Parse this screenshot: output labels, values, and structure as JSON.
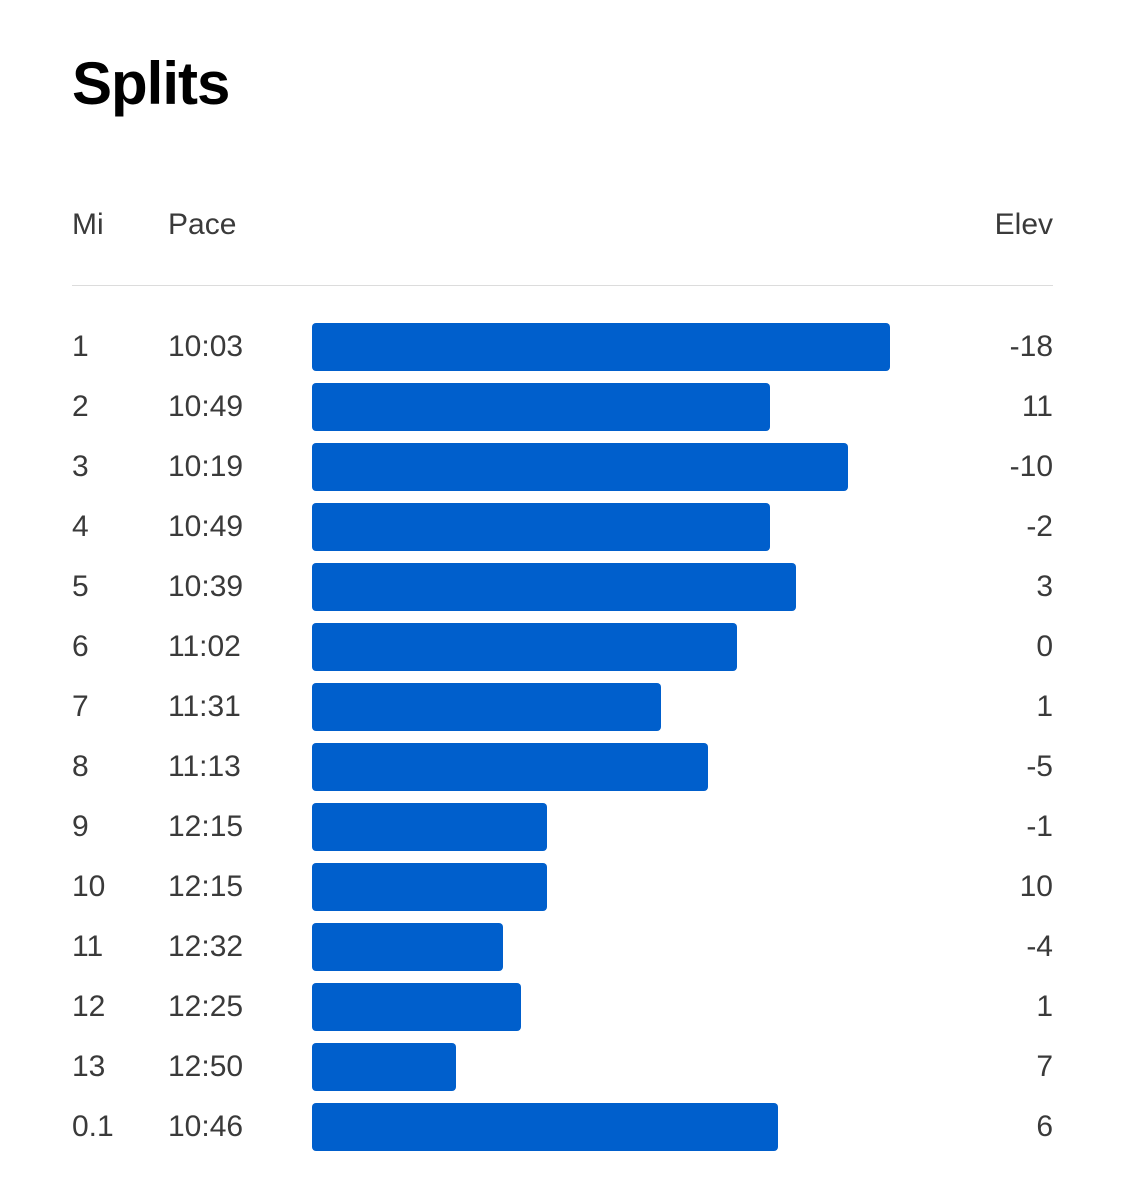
{
  "title": "Splits",
  "columns": {
    "mi": "Mi",
    "pace": "Pace",
    "elev": "Elev"
  },
  "accent_color": "#005fcc",
  "chart_data": {
    "type": "bar",
    "orientation": "horizontal",
    "categories": [
      "1",
      "2",
      "3",
      "4",
      "5",
      "6",
      "7",
      "8",
      "9",
      "10",
      "11",
      "12",
      "13",
      "0.1"
    ],
    "pace": [
      "10:03",
      "10:49",
      "10:19",
      "10:49",
      "10:39",
      "11:02",
      "11:31",
      "11:13",
      "12:15",
      "12:15",
      "12:32",
      "12:25",
      "12:50",
      "10:46"
    ],
    "elev": [
      "-18",
      "11",
      "-10",
      "-2",
      "3",
      "0",
      "1",
      "-5",
      "-1",
      "10",
      "-4",
      "1",
      "7",
      "6"
    ]
  }
}
